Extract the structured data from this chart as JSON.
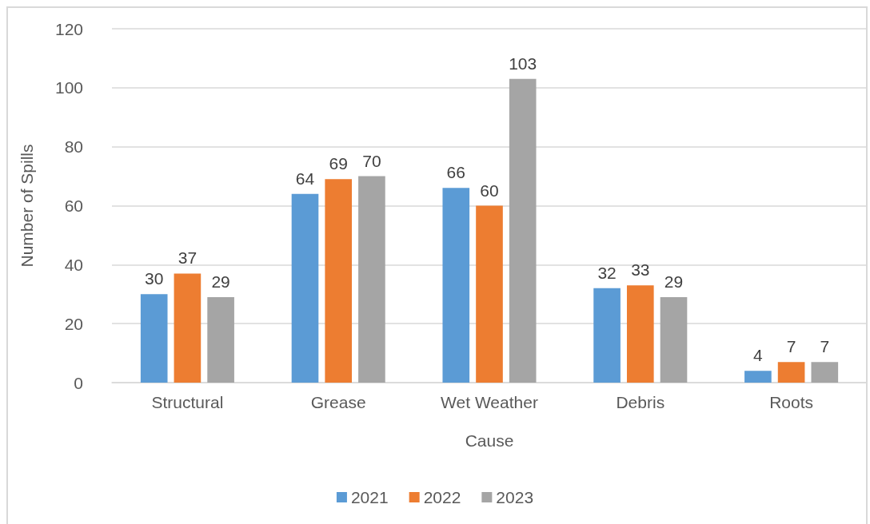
{
  "chart_data": {
    "type": "bar",
    "xlabel": "Cause",
    "ylabel": "Number of Spills",
    "categories": [
      "Structural",
      "Grease",
      "Wet Weather",
      "Debris",
      "Roots"
    ],
    "series": [
      {
        "name": "2021",
        "color": "#5b9bd5",
        "values": [
          30,
          64,
          66,
          32,
          4
        ]
      },
      {
        "name": "2022",
        "color": "#ed7d31",
        "values": [
          37,
          69,
          60,
          33,
          7
        ]
      },
      {
        "name": "2023",
        "color": "#a5a5a5",
        "values": [
          29,
          70,
          103,
          29,
          7
        ]
      }
    ],
    "ylim": [
      0,
      120
    ],
    "yticks": [
      0,
      20,
      40,
      60,
      80,
      100,
      120
    ],
    "grid": "y",
    "legend": "bottom",
    "data_labels": true
  }
}
